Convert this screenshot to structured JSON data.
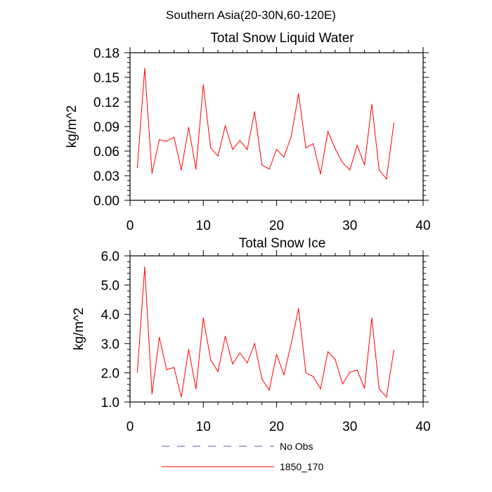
{
  "figure": {
    "title": "Southern Asia(20-30N,60-120E)"
  },
  "colors": {
    "series_1850_170": "#ff0000",
    "series_no_obs": "#5a5aa0",
    "axes": "#000000",
    "background": "#ffffff"
  },
  "chart_data": [
    {
      "type": "line",
      "title": "Total Snow Liquid Water",
      "xlabel": "",
      "ylabel": "kg/m^2",
      "xlim": [
        0,
        40
      ],
      "ylim": [
        0.0,
        0.18
      ],
      "xticks": [
        0,
        10,
        20,
        30,
        40
      ],
      "xtick_labels": [
        "0",
        "10",
        "20",
        "30",
        "40"
      ],
      "yticks": [
        0.0,
        0.03,
        0.06,
        0.09,
        0.12,
        0.15,
        0.18
      ],
      "ytick_labels": [
        "0.00",
        "0.03",
        "0.06",
        "0.09",
        "0.12",
        "0.15",
        "0.18"
      ],
      "grid": false,
      "x": [
        1,
        2,
        3,
        4,
        5,
        6,
        7,
        8,
        9,
        10,
        11,
        12,
        13,
        14,
        15,
        16,
        17,
        18,
        19,
        20,
        21,
        22,
        23,
        24,
        25,
        26,
        27,
        28,
        29,
        30,
        31,
        32,
        33,
        34,
        35,
        36
      ],
      "series": [
        {
          "name": "1850_170",
          "color": "#ff0000",
          "values": [
            0.04,
            0.161,
            0.033,
            0.074,
            0.072,
            0.077,
            0.037,
            0.089,
            0.038,
            0.141,
            0.064,
            0.054,
            0.091,
            0.062,
            0.073,
            0.062,
            0.108,
            0.043,
            0.038,
            0.062,
            0.053,
            0.078,
            0.13,
            0.064,
            0.069,
            0.032,
            0.084,
            0.063,
            0.046,
            0.037,
            0.067,
            0.043,
            0.117,
            0.037,
            0.026,
            0.094
          ]
        }
      ]
    },
    {
      "type": "line",
      "title": "Total Snow Ice",
      "xlabel": "",
      "ylabel": "kg/m^2",
      "xlim": [
        0,
        40
      ],
      "ylim": [
        1.0,
        6.0
      ],
      "xticks": [
        0,
        10,
        20,
        30,
        40
      ],
      "xtick_labels": [
        "0",
        "10",
        "20",
        "30",
        "40"
      ],
      "yticks": [
        1.0,
        2.0,
        3.0,
        4.0,
        5.0,
        6.0
      ],
      "ytick_labels": [
        "1.0",
        "2.0",
        "3.0",
        "4.0",
        "5.0",
        "6.0"
      ],
      "grid": false,
      "x": [
        1,
        2,
        3,
        4,
        5,
        6,
        7,
        8,
        9,
        10,
        11,
        12,
        13,
        14,
        15,
        16,
        17,
        18,
        19,
        20,
        21,
        22,
        23,
        24,
        25,
        26,
        27,
        28,
        29,
        30,
        31,
        32,
        33,
        34,
        35,
        36
      ],
      "series": [
        {
          "name": "1850_170",
          "color": "#ff0000",
          "values": [
            2.02,
            5.62,
            1.28,
            3.21,
            2.11,
            2.18,
            1.17,
            2.8,
            1.45,
            3.88,
            2.45,
            2.04,
            3.25,
            2.3,
            2.68,
            2.34,
            3.0,
            1.79,
            1.41,
            2.63,
            1.93,
            3.0,
            4.2,
            2.0,
            1.87,
            1.45,
            2.72,
            2.46,
            1.62,
            2.02,
            2.09,
            1.47,
            3.88,
            1.45,
            1.17,
            2.77
          ]
        }
      ]
    }
  ],
  "legend": {
    "placement": "bottom-center",
    "items": [
      {
        "label": "No Obs",
        "style": "dashed",
        "color": "#5a5aa0"
      },
      {
        "label": "1850_170",
        "style": "solid",
        "color": "#ff0000"
      }
    ]
  }
}
